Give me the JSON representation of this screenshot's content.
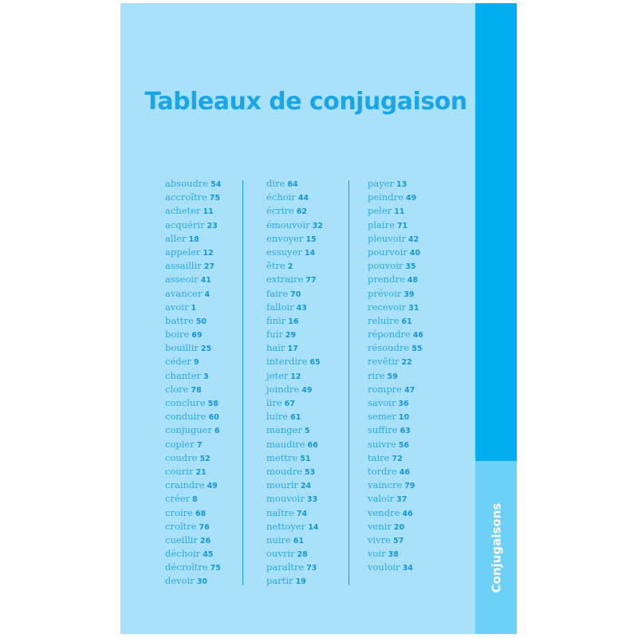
{
  "title": "Tableaux de conjugaison",
  "side_tab": "Conjugaisons",
  "colors": {
    "page": "#a9e0fa",
    "tab_dark": "#00aeef",
    "tab_light": "#6dd0f7",
    "text": "#2aa9e2"
  },
  "columns": [
    [
      [
        "absoudre",
        "54"
      ],
      [
        "accroître",
        "75"
      ],
      [
        "acheter",
        "11"
      ],
      [
        "acquérir",
        "23"
      ],
      [
        "aller",
        "18"
      ],
      [
        "appeler",
        "12"
      ],
      [
        "assaillir",
        "27"
      ],
      [
        "asseoir",
        "41"
      ],
      [
        "avancer",
        "4"
      ],
      [
        "avoir",
        "1"
      ],
      [
        "battre",
        "50"
      ],
      [
        "boire",
        "69"
      ],
      [
        "bouillir",
        "25"
      ],
      [
        "céder",
        "9"
      ],
      [
        "chanter",
        "3"
      ],
      [
        "clore",
        "78"
      ],
      [
        "conclure",
        "58"
      ],
      [
        "conduire",
        "60"
      ],
      [
        "conjuguer",
        "6"
      ],
      [
        "copier",
        "7"
      ],
      [
        "coudre",
        "52"
      ],
      [
        "courir",
        "21"
      ],
      [
        "craindre",
        "49"
      ],
      [
        "créer",
        "8"
      ],
      [
        "croire",
        "68"
      ],
      [
        "croître",
        "76"
      ],
      [
        "cueillir",
        "26"
      ],
      [
        "déchoir",
        "45"
      ],
      [
        "décroître",
        "75"
      ],
      [
        "devoir",
        "30"
      ]
    ],
    [
      [
        "dire",
        "64"
      ],
      [
        "échoir",
        "44"
      ],
      [
        "écrire",
        "62"
      ],
      [
        "émouvoir",
        "32"
      ],
      [
        "envoyer",
        "15"
      ],
      [
        "essuyer",
        "14"
      ],
      [
        "être",
        "2"
      ],
      [
        "extraire",
        "77"
      ],
      [
        "faire",
        "70"
      ],
      [
        "falloir",
        "43"
      ],
      [
        "finir",
        "16"
      ],
      [
        "fuir",
        "29"
      ],
      [
        "haïr",
        "17"
      ],
      [
        "interdire",
        "65"
      ],
      [
        "jeter",
        "12"
      ],
      [
        "joindre",
        "49"
      ],
      [
        "lire",
        "67"
      ],
      [
        "luire",
        "61"
      ],
      [
        "manger",
        "5"
      ],
      [
        "maudire",
        "66"
      ],
      [
        "mettre",
        "51"
      ],
      [
        "moudre",
        "53"
      ],
      [
        "mourir",
        "24"
      ],
      [
        "mouvoir",
        "33"
      ],
      [
        "naître",
        "74"
      ],
      [
        "nettoyer",
        "14"
      ],
      [
        "nuire",
        "61"
      ],
      [
        "ouvrir",
        "28"
      ],
      [
        "paraître",
        "73"
      ],
      [
        "partir",
        "19"
      ]
    ],
    [
      [
        "payer",
        "13"
      ],
      [
        "peindre",
        "49"
      ],
      [
        "peler",
        "11"
      ],
      [
        "plaire",
        "71"
      ],
      [
        "pleuvoir",
        "42"
      ],
      [
        "pourvoir",
        "40"
      ],
      [
        "pouvoir",
        "35"
      ],
      [
        "prendre",
        "48"
      ],
      [
        "prévoir",
        "39"
      ],
      [
        "recevoir",
        "31"
      ],
      [
        "reluire",
        "61"
      ],
      [
        "répondre",
        "46"
      ],
      [
        "résoudre",
        "55"
      ],
      [
        "revêtir",
        "22"
      ],
      [
        "rire",
        "59"
      ],
      [
        "rompre",
        "47"
      ],
      [
        "savoir",
        "36"
      ],
      [
        "semer",
        "10"
      ],
      [
        "suffire",
        "63"
      ],
      [
        "suivre",
        "56"
      ],
      [
        "taire",
        "72"
      ],
      [
        "tordre",
        "46"
      ],
      [
        "vaincre",
        "79"
      ],
      [
        "valoir",
        "37"
      ],
      [
        "vendre",
        "46"
      ],
      [
        "venir",
        "20"
      ],
      [
        "vivre",
        "57"
      ],
      [
        "voir",
        "38"
      ],
      [
        "vouloir",
        "34"
      ]
    ]
  ]
}
